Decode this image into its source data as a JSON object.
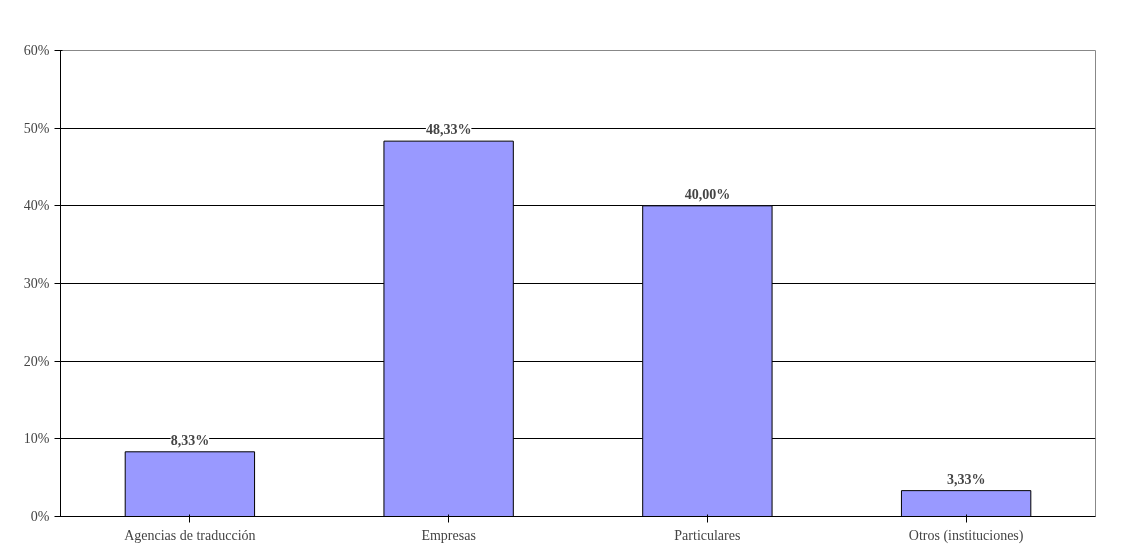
{
  "chart_data": {
    "type": "bar",
    "categories": [
      "Agencias de traducción",
      "Empresas",
      "Particulares",
      "Otros (instituciones)"
    ],
    "values": [
      8.33,
      48.33,
      40.0,
      3.33
    ],
    "value_labels": [
      "8,33%",
      "48,33%",
      "40,00%",
      "3,33%"
    ],
    "color": "#9999ff",
    "ylim": [
      0,
      60
    ],
    "yticks": [
      {
        "value": 0,
        "label": "0%"
      },
      {
        "value": 10,
        "label": "10%"
      },
      {
        "value": 20,
        "label": "20%"
      },
      {
        "value": 30,
        "label": "30%"
      },
      {
        "value": 40,
        "label": "40%"
      },
      {
        "value": 50,
        "label": "50%"
      },
      {
        "value": 60,
        "label": "60%"
      }
    ],
    "grid": "y"
  }
}
